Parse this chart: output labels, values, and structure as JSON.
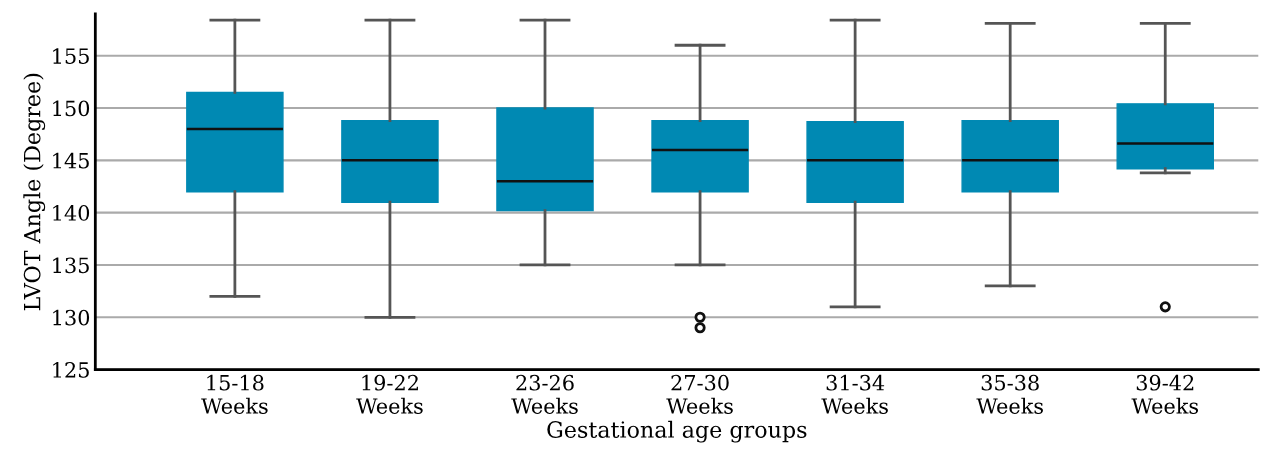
{
  "chart_data": {
    "type": "box",
    "xlabel": "Gestational age groups",
    "ylabel": "LVOT Angle (Degree)",
    "categories": [
      "15-18\nWeeks",
      "19-22\nWeeks",
      "23-26\nWeeks",
      "27-30\nWeeks",
      "31-34\nWeeks",
      "35-38\nWeeks",
      "39-42\nWeeks"
    ],
    "color": "#0089b3",
    "boxes": [
      {
        "low": 132,
        "q1": 142,
        "median": 148,
        "q3": 151.5,
        "high": 158.4
      },
      {
        "low": 130,
        "q1": 141,
        "median": 145,
        "q3": 148.8,
        "high": 158.4
      },
      {
        "low": 135,
        "q1": 140.2,
        "median": 143,
        "q3": 150,
        "high": 158.4
      },
      {
        "low": 135,
        "q1": 142,
        "median": 146,
        "q3": 148.8,
        "high": 156,
        "outliers": [
          130,
          129
        ]
      },
      {
        "low": 131,
        "q1": 141,
        "median": 145,
        "q3": 148.7,
        "high": 158.4
      },
      {
        "low": 133,
        "q1": 142,
        "median": 145,
        "q3": 148.8,
        "high": 158.1
      },
      {
        "low": 143.8,
        "q1": 144.2,
        "median": 146.6,
        "q3": 150.4,
        "high": 158.1,
        "outliers": [
          131
        ]
      }
    ],
    "ylim": [
      125,
      159
    ],
    "yticks": [
      125,
      130,
      135,
      140,
      145,
      150,
      155
    ],
    "grid": "y",
    "legend": false
  }
}
